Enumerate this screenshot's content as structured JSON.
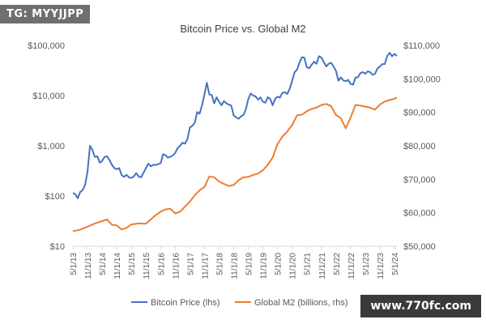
{
  "watermarks": {
    "top_left": "TG: MYYJJPP",
    "bottom_right": "www.770fc.com"
  },
  "chart_data": {
    "type": "line",
    "title": "Bitcoin Price vs. Global M2",
    "xlabel": "",
    "ylabel": "",
    "x_tick_labels": [
      "5/1/13",
      "11/1/13",
      "5/1/14",
      "11/1/14",
      "5/1/15",
      "11/1/15",
      "5/1/16",
      "11/1/16",
      "5/1/17",
      "11/1/17",
      "5/1/18",
      "11/1/18",
      "5/1/19",
      "11/1/19",
      "5/1/20",
      "11/1/20",
      "5/1/21",
      "11/1/21",
      "5/1/22",
      "11/1/22",
      "5/1/23",
      "11/1/23",
      "5/1/24"
    ],
    "y_left": {
      "scale": "log",
      "range": [
        10,
        100000
      ],
      "ticks": [
        "$10",
        "$100",
        "$1,000",
        "$10,000",
        "$100,000"
      ],
      "tick_values": [
        10,
        100,
        1000,
        10000,
        100000
      ]
    },
    "y_right": {
      "scale": "linear",
      "range": [
        50000,
        110000
      ],
      "ticks": [
        "$50,000",
        "$60,000",
        "$70,000",
        "$80,000",
        "$90,000",
        "$100,000",
        "$110,000"
      ],
      "tick_values": [
        50000,
        60000,
        70000,
        80000,
        90000,
        100000,
        110000
      ]
    },
    "grid": false,
    "legend_position": "bottom",
    "colors": {
      "btc": "#4472c4",
      "m2": "#ed7d31",
      "axis": "#d9d9d9",
      "text": "#595959",
      "title": "#404040"
    },
    "series": [
      {
        "name": "Bitcoin Price (lhs)",
        "axis": "left",
        "color": "#4472c4",
        "points": [
          [
            "5/1/13",
            115
          ],
          [
            "6/1/13",
            108
          ],
          [
            "7/1/13",
            90
          ],
          [
            "8/1/13",
            120
          ],
          [
            "9/1/13",
            130
          ],
          [
            "10/1/13",
            165
          ],
          [
            "11/1/13",
            300
          ],
          [
            "12/1/13",
            1000
          ],
          [
            "1/1/14",
            820
          ],
          [
            "2/1/14",
            600
          ],
          [
            "3/1/14",
            620
          ],
          [
            "4/1/14",
            460
          ],
          [
            "5/1/14",
            500
          ],
          [
            "6/1/14",
            600
          ],
          [
            "7/1/14",
            620
          ],
          [
            "8/1/14",
            520
          ],
          [
            "9/1/14",
            420
          ],
          [
            "10/1/14",
            360
          ],
          [
            "11/1/14",
            340
          ],
          [
            "12/1/14",
            360
          ],
          [
            "1/1/15",
            260
          ],
          [
            "2/1/15",
            240
          ],
          [
            "3/1/15",
            265
          ],
          [
            "4/1/15",
            235
          ],
          [
            "5/1/15",
            230
          ],
          [
            "6/1/15",
            245
          ],
          [
            "7/1/15",
            285
          ],
          [
            "8/1/15",
            245
          ],
          [
            "9/1/15",
            235
          ],
          [
            "10/1/15",
            290
          ],
          [
            "11/1/15",
            360
          ],
          [
            "12/1/15",
            440
          ],
          [
            "1/1/16",
            390
          ],
          [
            "2/1/16",
            420
          ],
          [
            "3/1/16",
            415
          ],
          [
            "4/1/16",
            430
          ],
          [
            "5/1/16",
            450
          ],
          [
            "6/1/16",
            680
          ],
          [
            "7/1/16",
            650
          ],
          [
            "8/1/16",
            580
          ],
          [
            "9/1/16",
            605
          ],
          [
            "10/1/16",
            640
          ],
          [
            "11/1/16",
            720
          ],
          [
            "12/1/16",
            900
          ],
          [
            "1/1/17",
            1000
          ],
          [
            "2/1/17",
            1150
          ],
          [
            "3/1/17",
            1100
          ],
          [
            "4/1/17",
            1350
          ],
          [
            "5/1/17",
            2300
          ],
          [
            "6/1/17",
            2500
          ],
          [
            "7/1/17",
            2850
          ],
          [
            "8/1/17",
            4700
          ],
          [
            "9/1/17",
            4350
          ],
          [
            "10/1/17",
            6400
          ],
          [
            "11/1/17",
            10500
          ],
          [
            "12/1/17",
            18000
          ],
          [
            "1/1/18",
            10500
          ],
          [
            "2/1/18",
            10300
          ],
          [
            "3/1/18",
            7000
          ],
          [
            "4/1/18",
            9200
          ],
          [
            "5/1/18",
            7500
          ],
          [
            "6/1/18",
            6400
          ],
          [
            "7/1/18",
            7800
          ],
          [
            "8/1/18",
            7000
          ],
          [
            "9/1/18",
            6600
          ],
          [
            "10/1/18",
            6300
          ],
          [
            "11/1/18",
            4000
          ],
          [
            "12/1/18",
            3700
          ],
          [
            "1/1/19",
            3450
          ],
          [
            "2/1/19",
            3850
          ],
          [
            "3/1/19",
            4100
          ],
          [
            "4/1/19",
            5300
          ],
          [
            "5/1/19",
            8500
          ],
          [
            "6/1/19",
            11000
          ],
          [
            "7/1/19",
            10000
          ],
          [
            "8/1/19",
            9600
          ],
          [
            "9/1/19",
            8300
          ],
          [
            "10/1/19",
            9200
          ],
          [
            "11/1/19",
            7500
          ],
          [
            "12/1/19",
            7200
          ],
          [
            "1/1/20",
            9300
          ],
          [
            "2/1/20",
            8600
          ],
          [
            "3/1/20",
            6400
          ],
          [
            "4/1/20",
            8600
          ],
          [
            "5/1/20",
            9500
          ],
          [
            "6/1/20",
            9100
          ],
          [
            "7/1/20",
            11300
          ],
          [
            "8/1/20",
            11600
          ],
          [
            "9/1/20",
            10800
          ],
          [
            "10/1/20",
            13800
          ],
          [
            "11/1/20",
            19700
          ],
          [
            "12/1/20",
            29000
          ],
          [
            "1/1/21",
            33000
          ],
          [
            "2/1/21",
            45000
          ],
          [
            "3/1/21",
            58000
          ],
          [
            "4/1/21",
            57000
          ],
          [
            "5/1/21",
            37000
          ],
          [
            "6/1/21",
            35000
          ],
          [
            "7/1/21",
            41000
          ],
          [
            "8/1/21",
            47000
          ],
          [
            "9/1/21",
            43000
          ],
          [
            "10/1/21",
            61000
          ],
          [
            "11/1/21",
            57000
          ],
          [
            "12/1/21",
            46000
          ],
          [
            "1/1/22",
            38000
          ],
          [
            "2/1/22",
            43000
          ],
          [
            "3/1/22",
            45000
          ],
          [
            "4/1/22",
            38000
          ],
          [
            "5/1/22",
            31000
          ],
          [
            "6/1/22",
            19800
          ],
          [
            "7/1/22",
            23000
          ],
          [
            "8/1/22",
            20000
          ],
          [
            "9/1/22",
            19400
          ],
          [
            "10/1/22",
            20500
          ],
          [
            "11/1/22",
            17000
          ],
          [
            "12/1/22",
            16500
          ],
          [
            "1/1/23",
            23000
          ],
          [
            "2/1/23",
            23100
          ],
          [
            "3/1/23",
            28000
          ],
          [
            "4/1/23",
            29200
          ],
          [
            "5/1/23",
            27200
          ],
          [
            "6/1/23",
            30400
          ],
          [
            "7/1/23",
            29200
          ],
          [
            "8/1/23",
            26000
          ],
          [
            "9/1/23",
            27000
          ],
          [
            "10/1/23",
            34500
          ],
          [
            "11/1/23",
            37700
          ],
          [
            "12/1/23",
            42300
          ],
          [
            "1/1/24",
            42500
          ],
          [
            "2/1/24",
            61000
          ],
          [
            "3/1/24",
            71000
          ],
          [
            "4/1/24",
            60600
          ],
          [
            "5/1/24",
            67500
          ],
          [
            "6/1/24",
            62000
          ]
        ]
      },
      {
        "name": "Global M2 (billions, rhs)",
        "axis": "right",
        "color": "#ed7d31",
        "points": [
          [
            "5/1/13",
            54500
          ],
          [
            "8/1/13",
            54900
          ],
          [
            "11/1/13",
            55800
          ],
          [
            "2/1/14",
            56800
          ],
          [
            "5/1/14",
            57500
          ],
          [
            "7/1/14",
            58000
          ],
          [
            "9/1/14",
            56400
          ],
          [
            "11/1/14",
            56200
          ],
          [
            "1/1/15",
            55000
          ],
          [
            "3/1/15",
            55500
          ],
          [
            "5/1/15",
            56500
          ],
          [
            "8/1/15",
            56800
          ],
          [
            "11/1/15",
            56700
          ],
          [
            "1/1/16",
            58000
          ],
          [
            "3/1/16",
            59300
          ],
          [
            "5/1/16",
            60300
          ],
          [
            "7/1/16",
            61000
          ],
          [
            "9/1/16",
            61200
          ],
          [
            "11/1/16",
            59800
          ],
          [
            "1/1/17",
            60300
          ],
          [
            "3/1/17",
            61800
          ],
          [
            "5/1/17",
            63300
          ],
          [
            "7/1/17",
            65200
          ],
          [
            "9/1/17",
            66700
          ],
          [
            "11/1/17",
            67700
          ],
          [
            "1/1/18",
            70800
          ],
          [
            "3/1/18",
            70600
          ],
          [
            "5/1/18",
            69300
          ],
          [
            "7/1/18",
            68600
          ],
          [
            "9/1/18",
            68000
          ],
          [
            "11/1/18",
            68300
          ],
          [
            "1/1/19",
            69700
          ],
          [
            "3/1/19",
            70600
          ],
          [
            "5/1/19",
            70700
          ],
          [
            "7/1/19",
            71300
          ],
          [
            "9/1/19",
            71700
          ],
          [
            "11/1/19",
            72700
          ],
          [
            "1/1/20",
            74300
          ],
          [
            "3/1/20",
            76500
          ],
          [
            "5/1/20",
            80500
          ],
          [
            "7/1/20",
            82700
          ],
          [
            "9/1/20",
            84300
          ],
          [
            "11/1/20",
            86200
          ],
          [
            "1/1/21",
            89100
          ],
          [
            "3/1/21",
            89300
          ],
          [
            "5/1/21",
            90300
          ],
          [
            "7/1/21",
            91000
          ],
          [
            "9/1/21",
            91400
          ],
          [
            "11/1/21",
            92200
          ],
          [
            "1/1/22",
            92500
          ],
          [
            "3/1/22",
            91800
          ],
          [
            "5/1/22",
            89200
          ],
          [
            "7/1/22",
            88300
          ],
          [
            "9/1/22",
            85200
          ],
          [
            "11/1/22",
            88500
          ],
          [
            "1/1/23",
            92200
          ],
          [
            "3/1/23",
            92000
          ],
          [
            "5/1/23",
            91700
          ],
          [
            "7/1/23",
            91400
          ],
          [
            "9/1/23",
            90800
          ],
          [
            "11/1/23",
            92300
          ],
          [
            "1/1/24",
            93200
          ],
          [
            "3/1/24",
            93700
          ],
          [
            "5/1/24",
            94000
          ],
          [
            "6/1/24",
            94500
          ]
        ]
      }
    ]
  }
}
